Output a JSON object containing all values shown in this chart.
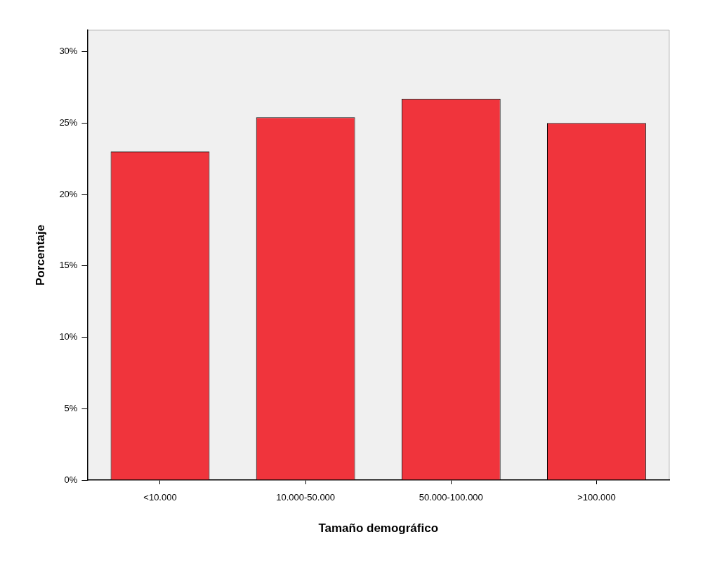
{
  "chart_data": {
    "type": "bar",
    "xlabel": "Tamaño demográfico",
    "ylabel": "Porcentaje",
    "categories": [
      "<10.000",
      "10.000-50.000",
      "50.000-100.000",
      ">100.000"
    ],
    "values": [
      23.0,
      25.4,
      26.7,
      25.0
    ],
    "color": "#f0343c",
    "ylim": [
      0,
      31.5
    ],
    "yticks": [
      {
        "value": 0,
        "label": "0%"
      },
      {
        "value": 5,
        "label": "5%"
      },
      {
        "value": 10,
        "label": "10%"
      },
      {
        "value": 15,
        "label": "15%"
      },
      {
        "value": 20,
        "label": "20%"
      },
      {
        "value": 25,
        "label": "25%"
      },
      {
        "value": 30,
        "label": "30%"
      }
    ],
    "grid": false,
    "legend": false
  }
}
